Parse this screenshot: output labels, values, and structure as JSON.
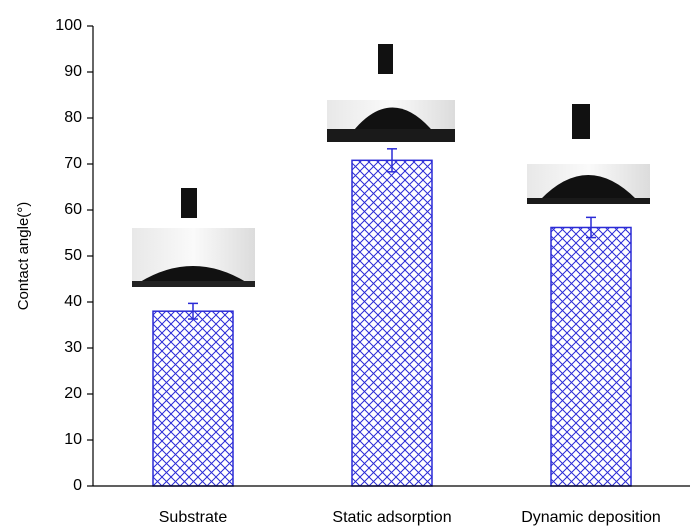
{
  "chart_data": {
    "type": "bar",
    "y_label": "Contact angle(°)",
    "categories": [
      "Substrate",
      "Static adsorption",
      "Dynamic deposition"
    ],
    "values": [
      38,
      70.8,
      56.2
    ],
    "errors": [
      1.7,
      2.5,
      2.2
    ],
    "color": "#2b2bd6",
    "ylim": [
      0,
      100
    ],
    "yticks": [
      0,
      10,
      20,
      30,
      40,
      50,
      60,
      70,
      80,
      90,
      100
    ]
  }
}
